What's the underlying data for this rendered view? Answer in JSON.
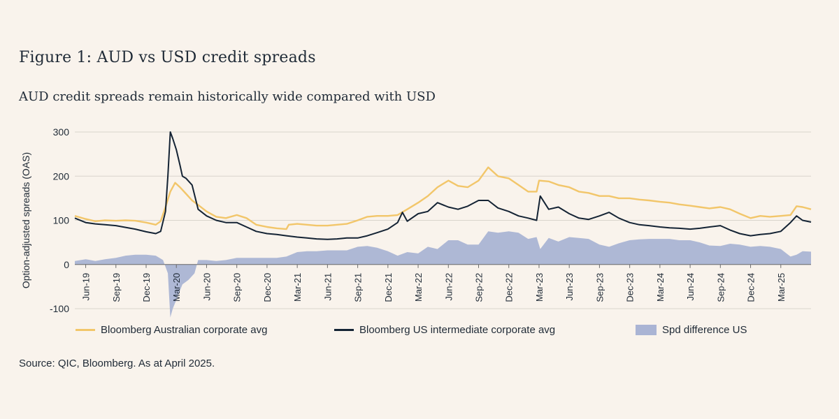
{
  "figure": {
    "title": "Figure 1: AUD vs USD credit spreads",
    "subtitle": "AUD credit spreads remain historically wide compared with USD",
    "source": "Source: QIC, Bloomberg. As at April 2025."
  },
  "colors": {
    "background": "#f9f3ec",
    "aud": "#f2c66a",
    "us": "#142334",
    "diff": "#aab4d4",
    "grid": "#d9d4cc"
  },
  "chart_data": {
    "type": "line",
    "title": "",
    "xlabel": "",
    "ylabel": "Option-adjusted spreads (OAS)",
    "ylim": [
      -100,
      300
    ],
    "yticks": [
      -100,
      0,
      100,
      200,
      300
    ],
    "x_range": [
      2019.33,
      2025.42
    ],
    "x_ticks": [
      {
        "label": "Jun-19",
        "t": 2019.42
      },
      {
        "label": "Sep-19",
        "t": 2019.67
      },
      {
        "label": "Dec-19",
        "t": 2019.92
      },
      {
        "label": "Mar-20",
        "t": 2020.17
      },
      {
        "label": "Jun-20",
        "t": 2020.42
      },
      {
        "label": "Sep-20",
        "t": 2020.67
      },
      {
        "label": "Dec-20",
        "t": 2020.92
      },
      {
        "label": "Mar-21",
        "t": 2021.17
      },
      {
        "label": "Jun-21",
        "t": 2021.42
      },
      {
        "label": "Sep-21",
        "t": 2021.67
      },
      {
        "label": "Dec-21",
        "t": 2021.92
      },
      {
        "label": "Mar-22",
        "t": 2022.17
      },
      {
        "label": "Jun-22",
        "t": 2022.42
      },
      {
        "label": "Sep-22",
        "t": 2022.67
      },
      {
        "label": "Dec-22",
        "t": 2022.92
      },
      {
        "label": "Mar-23",
        "t": 2023.17
      },
      {
        "label": "Jun-23",
        "t": 2023.42
      },
      {
        "label": "Sep-23",
        "t": 2023.67
      },
      {
        "label": "Dec-23",
        "t": 2023.92
      },
      {
        "label": "Mar-24",
        "t": 2024.17
      },
      {
        "label": "Jun-24",
        "t": 2024.42
      },
      {
        "label": "Sep-24",
        "t": 2024.67
      },
      {
        "label": "Dec-24",
        "t": 2024.92
      },
      {
        "label": "Mar-25",
        "t": 2025.17
      }
    ],
    "series": [
      {
        "name": "Bloomberg Australian corporate avg",
        "style": "line",
        "points": [
          [
            2019.33,
            110
          ],
          [
            2019.42,
            103
          ],
          [
            2019.5,
            98
          ],
          [
            2019.58,
            100
          ],
          [
            2019.67,
            99
          ],
          [
            2019.75,
            100
          ],
          [
            2019.83,
            99
          ],
          [
            2019.92,
            95
          ],
          [
            2020.0,
            90
          ],
          [
            2020.04,
            98
          ],
          [
            2020.08,
            130
          ],
          [
            2020.12,
            165
          ],
          [
            2020.16,
            185
          ],
          [
            2020.2,
            175
          ],
          [
            2020.25,
            160
          ],
          [
            2020.3,
            145
          ],
          [
            2020.35,
            135
          ],
          [
            2020.42,
            120
          ],
          [
            2020.5,
            108
          ],
          [
            2020.58,
            105
          ],
          [
            2020.67,
            112
          ],
          [
            2020.75,
            105
          ],
          [
            2020.83,
            90
          ],
          [
            2020.92,
            85
          ],
          [
            2021.0,
            82
          ],
          [
            2021.08,
            80
          ],
          [
            2021.1,
            90
          ],
          [
            2021.17,
            92
          ],
          [
            2021.25,
            90
          ],
          [
            2021.33,
            88
          ],
          [
            2021.42,
            88
          ],
          [
            2021.5,
            90
          ],
          [
            2021.58,
            92
          ],
          [
            2021.67,
            100
          ],
          [
            2021.75,
            108
          ],
          [
            2021.83,
            110
          ],
          [
            2021.92,
            110
          ],
          [
            2022.0,
            112
          ],
          [
            2022.08,
            125
          ],
          [
            2022.17,
            140
          ],
          [
            2022.25,
            155
          ],
          [
            2022.33,
            175
          ],
          [
            2022.42,
            190
          ],
          [
            2022.5,
            178
          ],
          [
            2022.58,
            175
          ],
          [
            2022.67,
            190
          ],
          [
            2022.75,
            220
          ],
          [
            2022.83,
            200
          ],
          [
            2022.92,
            195
          ],
          [
            2023.0,
            180
          ],
          [
            2023.08,
            165
          ],
          [
            2023.15,
            165
          ],
          [
            2023.17,
            190
          ],
          [
            2023.25,
            188
          ],
          [
            2023.33,
            180
          ],
          [
            2023.42,
            175
          ],
          [
            2023.5,
            165
          ],
          [
            2023.58,
            162
          ],
          [
            2023.67,
            155
          ],
          [
            2023.75,
            155
          ],
          [
            2023.83,
            150
          ],
          [
            2023.92,
            150
          ],
          [
            2024.0,
            147
          ],
          [
            2024.08,
            145
          ],
          [
            2024.17,
            142
          ],
          [
            2024.25,
            140
          ],
          [
            2024.33,
            136
          ],
          [
            2024.42,
            133
          ],
          [
            2024.5,
            130
          ],
          [
            2024.58,
            127
          ],
          [
            2024.67,
            130
          ],
          [
            2024.75,
            125
          ],
          [
            2024.83,
            115
          ],
          [
            2024.92,
            105
          ],
          [
            2025.0,
            110
          ],
          [
            2025.08,
            108
          ],
          [
            2025.17,
            110
          ],
          [
            2025.25,
            112
          ],
          [
            2025.3,
            132
          ],
          [
            2025.35,
            130
          ],
          [
            2025.42,
            125
          ]
        ]
      },
      {
        "name": "Bloomberg US intermediate corporate avg",
        "style": "line",
        "points": [
          [
            2019.33,
            105
          ],
          [
            2019.42,
            95
          ],
          [
            2019.5,
            92
          ],
          [
            2019.58,
            90
          ],
          [
            2019.67,
            88
          ],
          [
            2019.75,
            84
          ],
          [
            2019.83,
            80
          ],
          [
            2019.92,
            74
          ],
          [
            2020.0,
            70
          ],
          [
            2020.04,
            75
          ],
          [
            2020.08,
            120
          ],
          [
            2020.1,
            200
          ],
          [
            2020.12,
            300
          ],
          [
            2020.14,
            285
          ],
          [
            2020.17,
            260
          ],
          [
            2020.2,
            225
          ],
          [
            2020.22,
            200
          ],
          [
            2020.25,
            195
          ],
          [
            2020.3,
            180
          ],
          [
            2020.35,
            125
          ],
          [
            2020.42,
            110
          ],
          [
            2020.5,
            100
          ],
          [
            2020.58,
            95
          ],
          [
            2020.67,
            95
          ],
          [
            2020.75,
            85
          ],
          [
            2020.83,
            75
          ],
          [
            2020.92,
            70
          ],
          [
            2021.0,
            68
          ],
          [
            2021.08,
            65
          ],
          [
            2021.17,
            62
          ],
          [
            2021.25,
            60
          ],
          [
            2021.33,
            58
          ],
          [
            2021.42,
            57
          ],
          [
            2021.5,
            58
          ],
          [
            2021.58,
            60
          ],
          [
            2021.67,
            60
          ],
          [
            2021.75,
            65
          ],
          [
            2021.83,
            72
          ],
          [
            2021.92,
            80
          ],
          [
            2022.0,
            95
          ],
          [
            2022.04,
            118
          ],
          [
            2022.08,
            98
          ],
          [
            2022.17,
            115
          ],
          [
            2022.25,
            120
          ],
          [
            2022.33,
            140
          ],
          [
            2022.42,
            130
          ],
          [
            2022.5,
            125
          ],
          [
            2022.58,
            132
          ],
          [
            2022.67,
            145
          ],
          [
            2022.75,
            145
          ],
          [
            2022.83,
            128
          ],
          [
            2022.92,
            120
          ],
          [
            2023.0,
            110
          ],
          [
            2023.08,
            105
          ],
          [
            2023.15,
            100
          ],
          [
            2023.18,
            155
          ],
          [
            2023.25,
            125
          ],
          [
            2023.33,
            130
          ],
          [
            2023.42,
            115
          ],
          [
            2023.5,
            105
          ],
          [
            2023.58,
            102
          ],
          [
            2023.67,
            110
          ],
          [
            2023.75,
            118
          ],
          [
            2023.83,
            105
          ],
          [
            2023.92,
            95
          ],
          [
            2024.0,
            90
          ],
          [
            2024.08,
            88
          ],
          [
            2024.17,
            85
          ],
          [
            2024.25,
            83
          ],
          [
            2024.33,
            82
          ],
          [
            2024.42,
            80
          ],
          [
            2024.5,
            82
          ],
          [
            2024.58,
            85
          ],
          [
            2024.67,
            88
          ],
          [
            2024.75,
            78
          ],
          [
            2024.83,
            70
          ],
          [
            2024.92,
            65
          ],
          [
            2025.0,
            68
          ],
          [
            2025.08,
            70
          ],
          [
            2025.17,
            75
          ],
          [
            2025.25,
            95
          ],
          [
            2025.3,
            110
          ],
          [
            2025.35,
            100
          ],
          [
            2025.42,
            96
          ]
        ]
      },
      {
        "name": "Spd difference US",
        "style": "area",
        "points": [
          [
            2019.33,
            8
          ],
          [
            2019.42,
            12
          ],
          [
            2019.5,
            8
          ],
          [
            2019.58,
            12
          ],
          [
            2019.67,
            15
          ],
          [
            2019.75,
            20
          ],
          [
            2019.83,
            22
          ],
          [
            2019.92,
            22
          ],
          [
            2020.0,
            20
          ],
          [
            2020.06,
            10
          ],
          [
            2020.1,
            -20
          ],
          [
            2020.12,
            -120
          ],
          [
            2020.14,
            -100
          ],
          [
            2020.17,
            -80
          ],
          [
            2020.22,
            -45
          ],
          [
            2020.27,
            -35
          ],
          [
            2020.32,
            -20
          ],
          [
            2020.35,
            10
          ],
          [
            2020.42,
            10
          ],
          [
            2020.5,
            8
          ],
          [
            2020.58,
            10
          ],
          [
            2020.67,
            15
          ],
          [
            2020.75,
            15
          ],
          [
            2020.83,
            15
          ],
          [
            2020.92,
            15
          ],
          [
            2021.0,
            15
          ],
          [
            2021.08,
            18
          ],
          [
            2021.17,
            28
          ],
          [
            2021.25,
            30
          ],
          [
            2021.33,
            30
          ],
          [
            2021.42,
            32
          ],
          [
            2021.5,
            32
          ],
          [
            2021.58,
            32
          ],
          [
            2021.67,
            40
          ],
          [
            2021.75,
            42
          ],
          [
            2021.83,
            38
          ],
          [
            2021.92,
            30
          ],
          [
            2022.0,
            20
          ],
          [
            2022.08,
            28
          ],
          [
            2022.17,
            25
          ],
          [
            2022.25,
            40
          ],
          [
            2022.33,
            35
          ],
          [
            2022.42,
            55
          ],
          [
            2022.5,
            55
          ],
          [
            2022.58,
            45
          ],
          [
            2022.67,
            45
          ],
          [
            2022.75,
            75
          ],
          [
            2022.83,
            72
          ],
          [
            2022.92,
            75
          ],
          [
            2023.0,
            72
          ],
          [
            2023.08,
            58
          ],
          [
            2023.15,
            62
          ],
          [
            2023.18,
            35
          ],
          [
            2023.25,
            60
          ],
          [
            2023.33,
            52
          ],
          [
            2023.42,
            62
          ],
          [
            2023.5,
            60
          ],
          [
            2023.58,
            58
          ],
          [
            2023.67,
            45
          ],
          [
            2023.75,
            40
          ],
          [
            2023.83,
            48
          ],
          [
            2023.92,
            55
          ],
          [
            2024.0,
            57
          ],
          [
            2024.08,
            58
          ],
          [
            2024.17,
            58
          ],
          [
            2024.25,
            58
          ],
          [
            2024.33,
            55
          ],
          [
            2024.42,
            55
          ],
          [
            2024.5,
            50
          ],
          [
            2024.58,
            43
          ],
          [
            2024.67,
            42
          ],
          [
            2024.75,
            47
          ],
          [
            2024.83,
            45
          ],
          [
            2024.92,
            40
          ],
          [
            2025.0,
            42
          ],
          [
            2025.08,
            40
          ],
          [
            2025.17,
            35
          ],
          [
            2025.25,
            18
          ],
          [
            2025.3,
            22
          ],
          [
            2025.35,
            30
          ],
          [
            2025.42,
            29
          ]
        ]
      }
    ],
    "legend": [
      {
        "label": "Bloomberg Australian corporate avg",
        "kind": "line",
        "color": "#f2c66a"
      },
      {
        "label": "Bloomberg US intermediate corporate avg",
        "kind": "line",
        "color": "#142334"
      },
      {
        "label": "Spd difference US",
        "kind": "area",
        "color": "#aab4d4"
      }
    ],
    "legend_position": "bottom",
    "grid": true
  }
}
